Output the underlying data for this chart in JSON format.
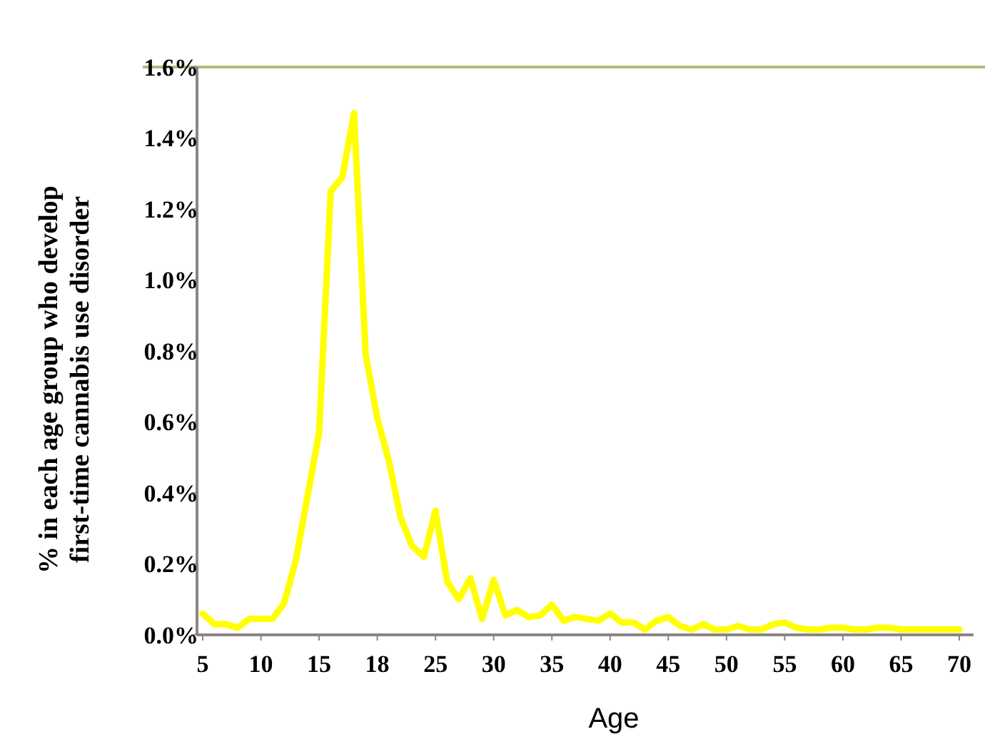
{
  "chart_data": {
    "type": "line",
    "xlabel": "Age",
    "ylabel": "% in each age group who develop first-time cannabis use disorder",
    "categories": [
      "5",
      null,
      null,
      null,
      null,
      "10",
      null,
      null,
      null,
      null,
      "15",
      null,
      null,
      null,
      null,
      "18",
      null,
      null,
      null,
      null,
      "25",
      null,
      null,
      null,
      null,
      "30",
      null,
      null,
      null,
      null,
      "35",
      null,
      null,
      null,
      null,
      "40",
      null,
      null,
      null,
      null,
      "45",
      null,
      null,
      null,
      null,
      "50",
      null,
      null,
      null,
      null,
      "55",
      null,
      null,
      null,
      null,
      "60",
      null,
      null,
      null,
      null,
      "65",
      null,
      null,
      null,
      null,
      "70"
    ],
    "series": [
      {
        "color": "#ffff00",
        "values": [
          0.06,
          0.03,
          0.03,
          0.02,
          0.045,
          0.045,
          0.045,
          0.09,
          0.21,
          0.39,
          0.57,
          1.25,
          1.29,
          1.47,
          0.79,
          0.61,
          0.49,
          0.33,
          0.25,
          0.22,
          0.35,
          0.15,
          0.1,
          0.16,
          0.045,
          0.155,
          0.055,
          0.07,
          0.05,
          0.055,
          0.085,
          0.04,
          0.05,
          0.045,
          0.04,
          0.06,
          0.035,
          0.035,
          0.015,
          0.04,
          0.05,
          0.025,
          0.015,
          0.03,
          0.015,
          0.015,
          0.025,
          0.015,
          0.015,
          0.03,
          0.035,
          0.02,
          0.015,
          0.015,
          0.02,
          0.02,
          0.015,
          0.015,
          0.02,
          0.02,
          0.015,
          0.015,
          0.015,
          0.015,
          0.015,
          0.015
        ]
      }
    ],
    "ylim": [
      0,
      1.6
    ],
    "yticks": [
      {
        "value": 0,
        "label": "0.0%"
      },
      {
        "value": 0.2,
        "label": "0.2%"
      },
      {
        "value": 0.4,
        "label": "0.4%"
      },
      {
        "value": 0.6,
        "label": "0.6%"
      },
      {
        "value": 0.8,
        "label": "0.8%"
      },
      {
        "value": 1.0,
        "label": "1.0%"
      },
      {
        "value": 1.2,
        "label": "1.2%"
      },
      {
        "value": 1.4,
        "label": "1.4%"
      },
      {
        "value": 1.6,
        "label": "1.6%"
      }
    ],
    "ref_lines": [
      {
        "axis": "y",
        "value": 1.6,
        "color": "#b3b97c"
      }
    ],
    "grid": false,
    "marker": "none",
    "line_style": "solid"
  }
}
